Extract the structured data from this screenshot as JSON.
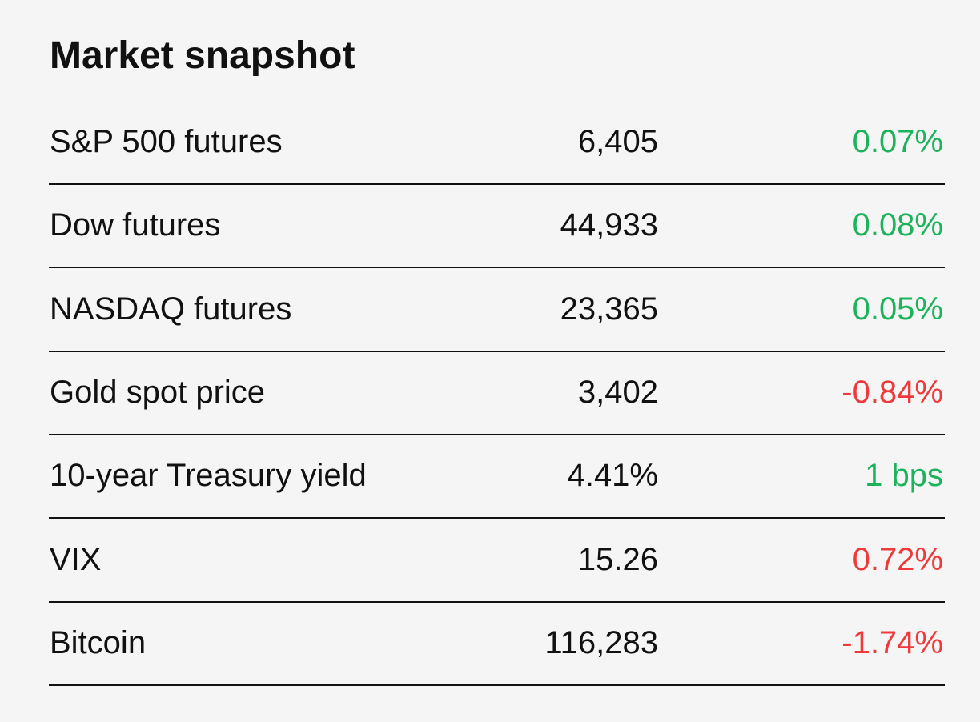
{
  "header": {
    "title": "Market snapshot"
  },
  "table": {
    "rows": [
      {
        "name": "S&P 500 futures",
        "value": "6,405",
        "change": "0.07%",
        "color": "#1db35a"
      },
      {
        "name": "Dow futures",
        "value": "44,933",
        "change": "0.08%",
        "color": "#1db35a"
      },
      {
        "name": "NASDAQ futures",
        "value": "23,365",
        "change": "0.05%",
        "color": "#1db35a"
      },
      {
        "name": "Gold spot price",
        "value": "3,402",
        "change": "-0.84%",
        "color": "#ef3a3c"
      },
      {
        "name": "10-year Treasury yield",
        "value": "4.41%",
        "change": "1 bps",
        "color": "#1db35a"
      },
      {
        "name": "VIX",
        "value": "15.26",
        "change": "0.72%",
        "color": "#ef3a3c"
      },
      {
        "name": "Bitcoin",
        "value": "116,283",
        "change": "-1.74%",
        "color": "#ef3a3c"
      }
    ]
  }
}
